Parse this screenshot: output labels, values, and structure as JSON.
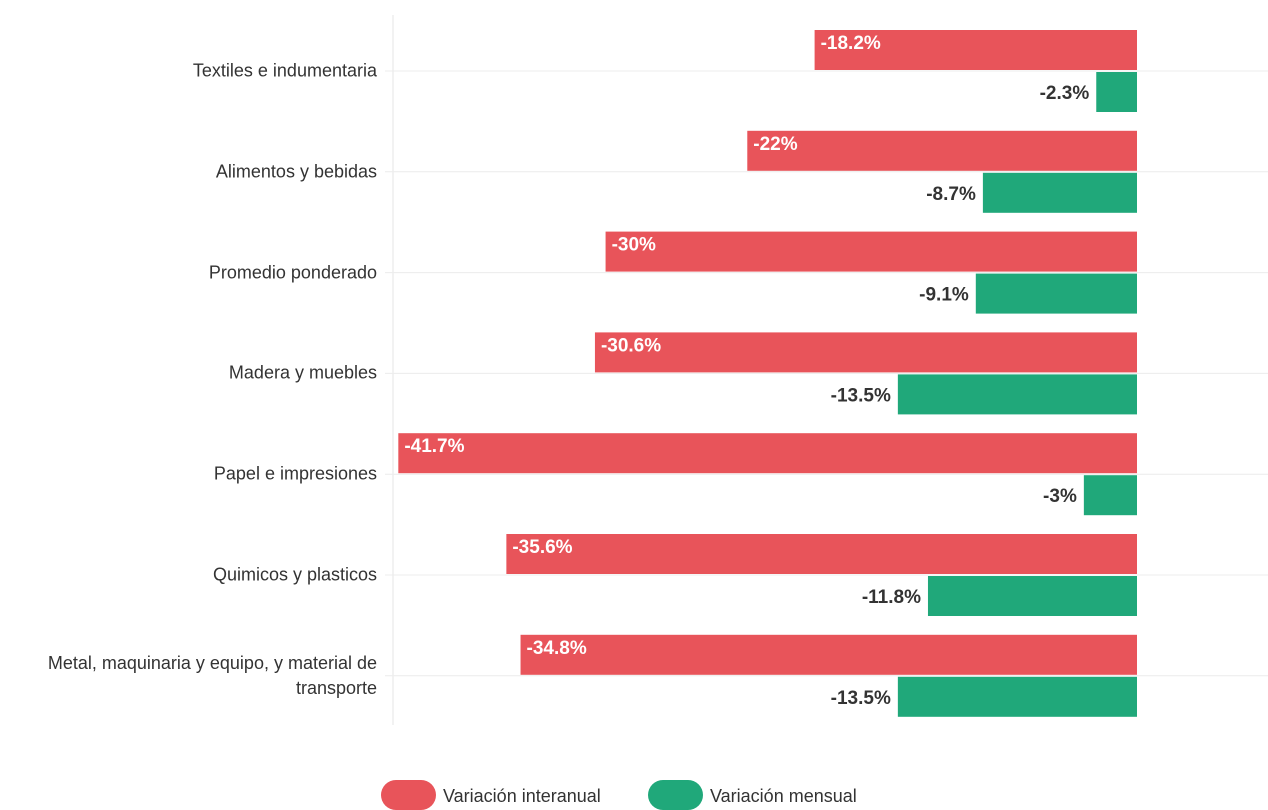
{
  "chart_data": {
    "type": "bar",
    "orientation": "horizontal",
    "categories": [
      "Textiles e indumentaria",
      "Alimentos y bebidas",
      "Promedio ponderado",
      "Madera y muebles",
      "Papel e impresiones",
      "Quimicos y plasticos",
      "Metal, maquinaria y equipo, y material de transporte"
    ],
    "series": [
      {
        "name": "Variación interanual",
        "color": "#e8545a",
        "values": [
          -18.2,
          -22,
          -30,
          -30.6,
          -41.7,
          -35.6,
          -34.8
        ],
        "value_labels": [
          "-18.2%",
          "-22%",
          "-30%",
          "-30.6%",
          "-41.7%",
          "-35.6%",
          "-34.8%"
        ]
      },
      {
        "name": "Variación mensual",
        "color": "#20a87a",
        "values": [
          -2.3,
          -8.7,
          -9.1,
          -13.5,
          -3,
          -11.8,
          -13.5
        ],
        "value_labels": [
          "-2.3%",
          "-8.7%",
          "-9.1%",
          "-13.5%",
          "-3%",
          "-11.8%",
          "-13.5%"
        ]
      }
    ],
    "xlim": [
      -42,
      0
    ]
  }
}
